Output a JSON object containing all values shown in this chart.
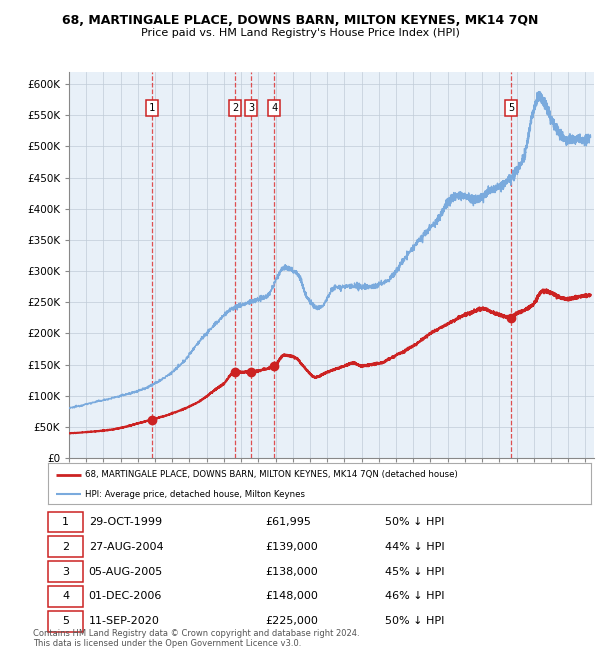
{
  "title": "68, MARTINGALE PLACE, DOWNS BARN, MILTON KEYNES, MK14 7QN",
  "subtitle": "Price paid vs. HM Land Registry's House Price Index (HPI)",
  "hpi_label": "HPI: Average price, detached house, Milton Keynes",
  "property_label": "68, MARTINGALE PLACE, DOWNS BARN, MILTON KEYNES, MK14 7QN (detached house)",
  "hpi_color": "#7aaadd",
  "property_color": "#cc2222",
  "plot_bg_color": "#e8f0f8",
  "grid_color": "#c0ccd8",
  "ylim": [
    0,
    620000
  ],
  "yticks": [
    0,
    50000,
    100000,
    150000,
    200000,
    250000,
    300000,
    350000,
    400000,
    450000,
    500000,
    550000,
    600000
  ],
  "ytick_labels": [
    "£0",
    "£50K",
    "£100K",
    "£150K",
    "£200K",
    "£250K",
    "£300K",
    "£350K",
    "£400K",
    "£450K",
    "£500K",
    "£550K",
    "£600K"
  ],
  "footnote": "Contains HM Land Registry data © Crown copyright and database right 2024.\nThis data is licensed under the Open Government Licence v3.0.",
  "sale_points": [
    {
      "label": "1",
      "date_year": 1999.83,
      "price": 61995
    },
    {
      "label": "2",
      "date_year": 2004.65,
      "price": 139000
    },
    {
      "label": "3",
      "date_year": 2005.59,
      "price": 138000
    },
    {
      "label": "4",
      "date_year": 2006.92,
      "price": 148000
    },
    {
      "label": "5",
      "date_year": 2020.69,
      "price": 225000
    }
  ],
  "sale_table": [
    {
      "num": "1",
      "date": "29-OCT-1999",
      "price": "£61,995",
      "note": "50% ↓ HPI"
    },
    {
      "num": "2",
      "date": "27-AUG-2004",
      "price": "£139,000",
      "note": "44% ↓ HPI"
    },
    {
      "num": "3",
      "date": "05-AUG-2005",
      "price": "£138,000",
      "note": "45% ↓ HPI"
    },
    {
      "num": "4",
      "date": "01-DEC-2006",
      "price": "£148,000",
      "note": "46% ↓ HPI"
    },
    {
      "num": "5",
      "date": "11-SEP-2020",
      "price": "£225,000",
      "note": "50% ↓ HPI"
    }
  ],
  "xmin": 1995.0,
  "xmax": 2025.5
}
